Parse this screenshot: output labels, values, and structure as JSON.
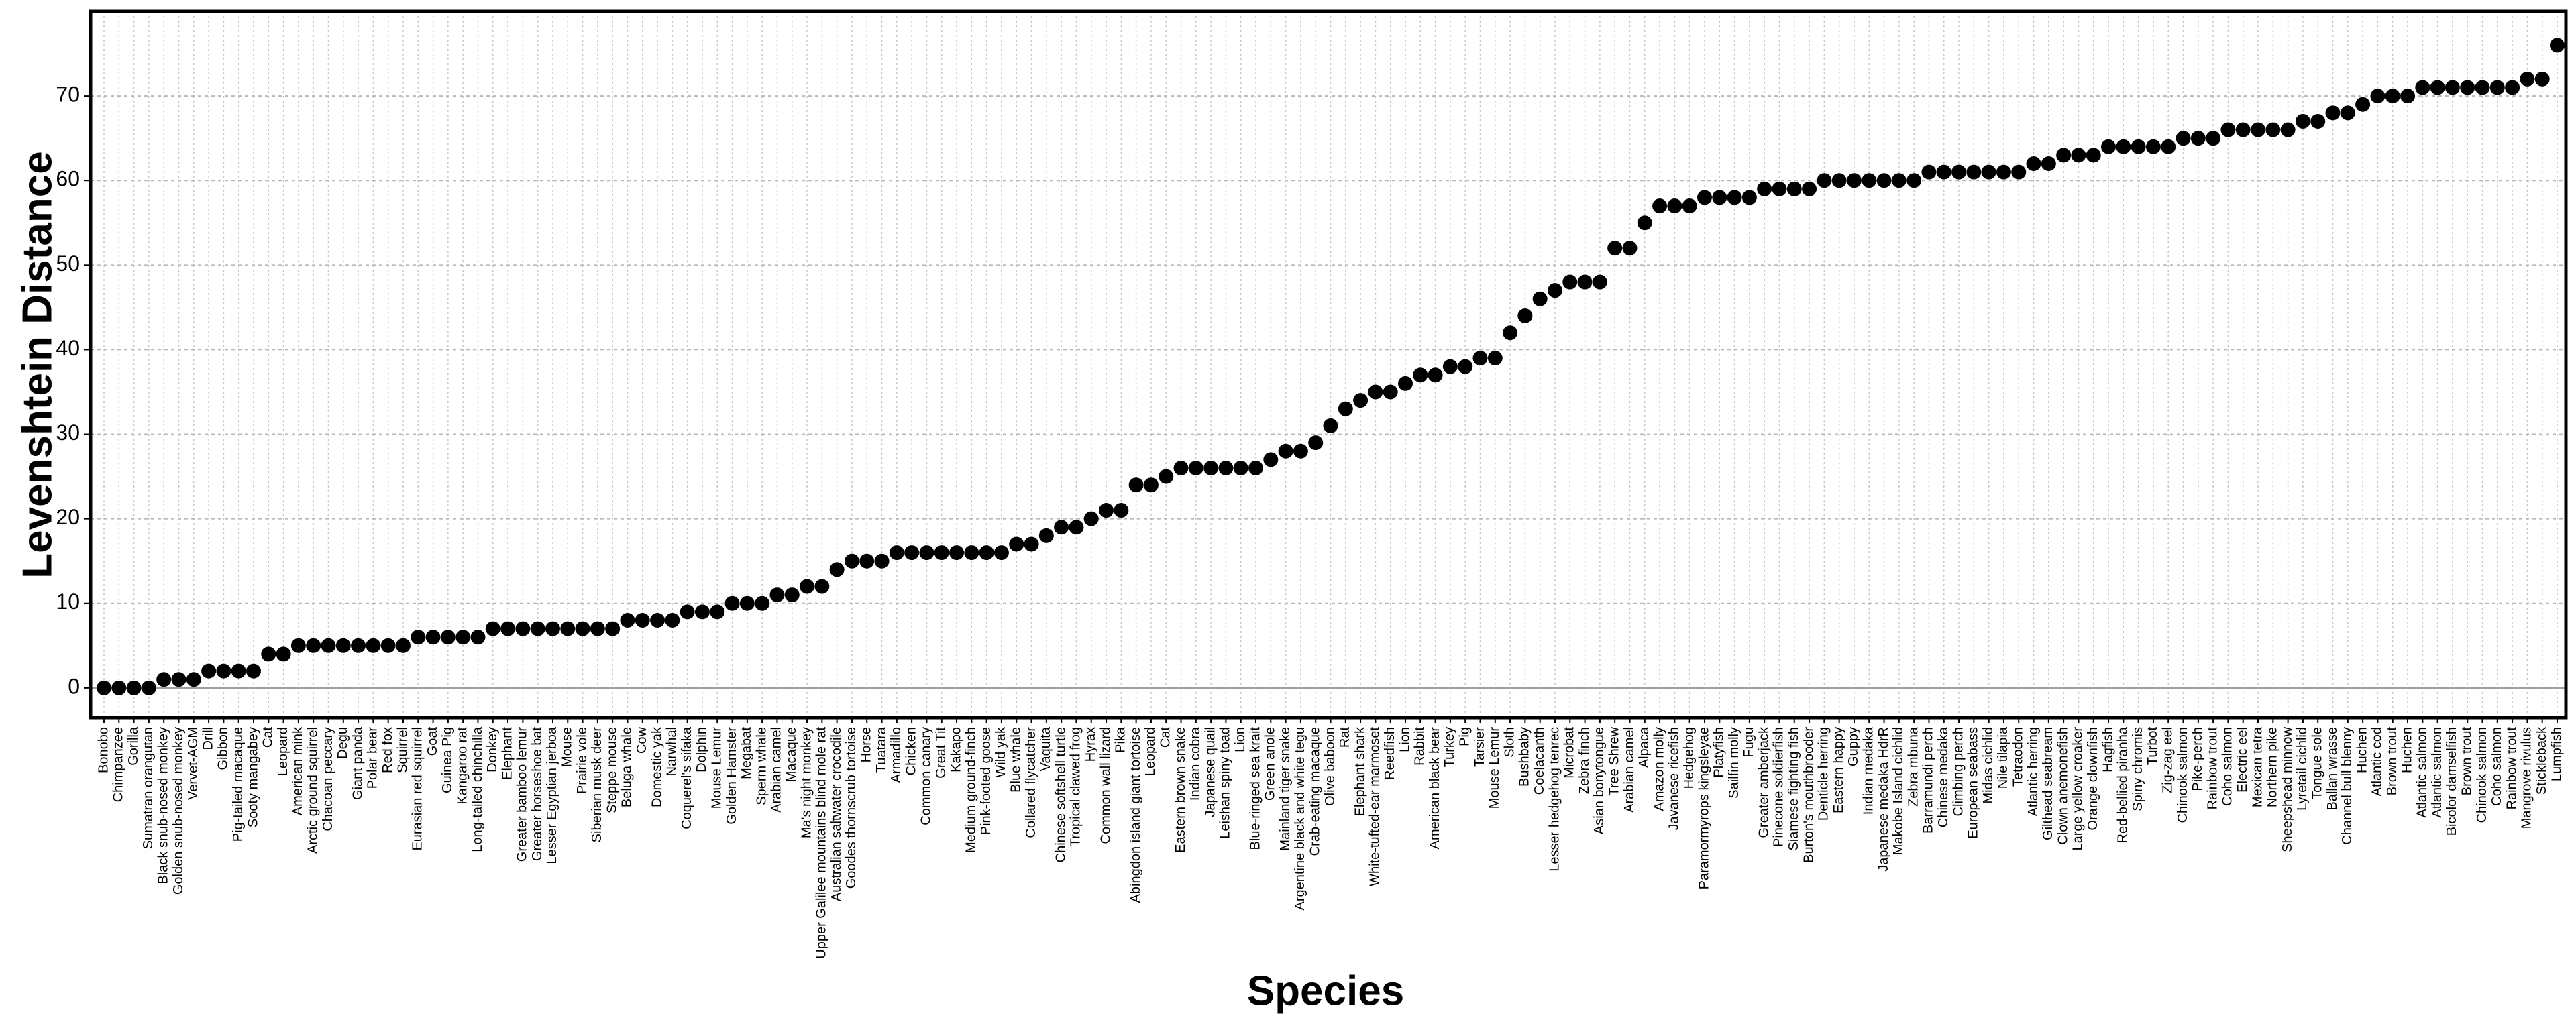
{
  "chart_data": {
    "type": "scatter",
    "xlabel": "Species",
    "ylabel": "Levenshtein Distance",
    "color": "#000000",
    "grid": true,
    "ylim": [
      -3.5,
      80
    ],
    "yticks": [
      0,
      10,
      20,
      30,
      40,
      50,
      60,
      70
    ],
    "categories": [
      "Bonobo",
      "Chimpanzee",
      "Gorilla",
      "Sumatran orangutan",
      "Black snub-nosed monkey",
      "Golden snub-nosed monkey",
      "Vervet-AGM",
      "Drill",
      "Gibbon",
      "Pig-tailed macaque",
      "Sooty mangabey",
      "Cat",
      "Leopard",
      "American mink",
      "Arctic ground squirrel",
      "Chacoan peccary",
      "Degu",
      "Giant panda",
      "Polar bear",
      "Red fox",
      "Squirrel",
      "Eurasian red squirrel",
      "Goat",
      "Guinea Pig",
      "Kangaroo rat",
      "Long-tailed chinchilla",
      "Donkey",
      "Elephant",
      "Greater bamboo lemur",
      "Greater horseshoe bat",
      "Lesser Egyptian jerboa",
      "Mouse",
      "Prairie vole",
      "Siberian musk deer",
      "Steppe mouse",
      "Beluga whale",
      "Cow",
      "Domestic yak",
      "Narwhal",
      "Coquerel's sifaka",
      "Dolphin",
      "Mouse Lemur",
      "Golden Hamster",
      "Megabat",
      "Sperm whale",
      "Arabian camel",
      "Macaque",
      "Ma's night monkey",
      "Upper Galilee mountains blind mole rat",
      "Australian saltwater crocodile",
      "Goodes thornscrub tortoise",
      "Horse",
      "Tuatara",
      "Armadillo",
      "Chicken",
      "Common canary",
      "Great Tit",
      "Kakapo",
      "Medium ground-finch",
      "Pink-footed goose",
      "Wild yak",
      "Blue whale",
      "Collared flycatcher",
      "Vaquita",
      "Chinese softshell turtle",
      "Tropical clawed frog",
      "Hyrax",
      "Common wall lizard",
      "Pika",
      "Abingdon island giant tortoise",
      "Leopard",
      "Cat",
      "Eastern brown snake",
      "Indian cobra",
      "Japanese quail",
      "Leishan spiny toad",
      "Lion",
      "Blue-ringed sea krait",
      "Green anole",
      "Mainland tiger snake",
      "Argentine black and white tegu",
      "Crab-eating macaque",
      "Olive baboon",
      "Rat",
      "Elephant shark",
      "White-tufted-ear marmoset",
      "Reedfish",
      "Lion",
      "Rabbit",
      "American black bear",
      "Turkey",
      "Pig",
      "Tarsier",
      "Mouse Lemur",
      "Sloth",
      "Bushbaby",
      "Coelacanth",
      "Lesser hedgehog tenrec",
      "Microbat",
      "Zebra finch",
      "Asian bonytongue",
      "Tree Shrew",
      "Arabian camel",
      "Alpaca",
      "Amazon molly",
      "Javanese ricefish",
      "Hedgehog",
      "Paramormyrops kingsleyae",
      "Platyfish",
      "Sailfin molly",
      "Fugu",
      "Greater amberjack",
      "Pinecone soldierfish",
      "Siamese fighting fish",
      "Burton's mouthbrooder",
      "Denticle herring",
      "Eastern happy",
      "Guppy",
      "Indian medaka",
      "Japanese medaka HdrR",
      "Makobe Island cichlid",
      "Zebra mbuna",
      "Barramundi perch",
      "Chinese medaka",
      "Climbing perch",
      "European seabass",
      "Midas cichlid",
      "Nile tilapia",
      "Tetraodon",
      "Atlantic herring",
      "Gilthead seabream",
      "Clown anemonefish",
      "Large yellow croaker",
      "Orange clownfish",
      "Hagfish",
      "Red-bellied piranha",
      "Spiny chromis",
      "Turbot",
      "Zig-zag eel",
      "Chinook salmon",
      "Pike-perch",
      "Rainbow trout",
      "Coho salmon",
      "Electric eel",
      "Mexican tetra",
      "Northern pike",
      "Sheepshead minnow",
      "Lyretail cichlid",
      "Tongue sole",
      "Ballan wrasse",
      "Channel bull blenny",
      "Huchen",
      "Atlantic cod",
      "Brown trout",
      "Huchen",
      "Atlantic salmon",
      "Atlantic salmon",
      "Bicolor damselfish",
      "Brown trout",
      "Chinook salmon",
      "Coho salmon",
      "Rainbow trout",
      "Mangrove rivulus",
      "Stickleback",
      "Lumpfish"
    ],
    "values": [
      0,
      0,
      0,
      0,
      1,
      1,
      1,
      2,
      2,
      2,
      2,
      4,
      4,
      5,
      5,
      5,
      5,
      5,
      5,
      5,
      5,
      6,
      6,
      6,
      6,
      6,
      7,
      7,
      7,
      7,
      7,
      7,
      7,
      7,
      7,
      8,
      8,
      8,
      8,
      9,
      9,
      9,
      10,
      10,
      10,
      11,
      11,
      12,
      12,
      14,
      15,
      15,
      15,
      16,
      16,
      16,
      16,
      16,
      16,
      16,
      16,
      17,
      17,
      18,
      19,
      19,
      20,
      21,
      21,
      24,
      24,
      25,
      26,
      26,
      26,
      26,
      26,
      26,
      27,
      28,
      28,
      29,
      31,
      33,
      34,
      35,
      35,
      36,
      37,
      37,
      38,
      38,
      39,
      39,
      42,
      44,
      46,
      47,
      48,
      48,
      48,
      52,
      52,
      55,
      57,
      57,
      57,
      58,
      58,
      58,
      58,
      59,
      59,
      59,
      59,
      60,
      60,
      60,
      60,
      60,
      60,
      60,
      61,
      61,
      61,
      61,
      61,
      61,
      61,
      62,
      62,
      63,
      63,
      63,
      64,
      64,
      64,
      64,
      64,
      65,
      65,
      65,
      66,
      66,
      66,
      66,
      66,
      67,
      67,
      68,
      68,
      69,
      70,
      70,
      70,
      71,
      71,
      71,
      71,
      71,
      71,
      71,
      72,
      72,
      76
    ]
  }
}
